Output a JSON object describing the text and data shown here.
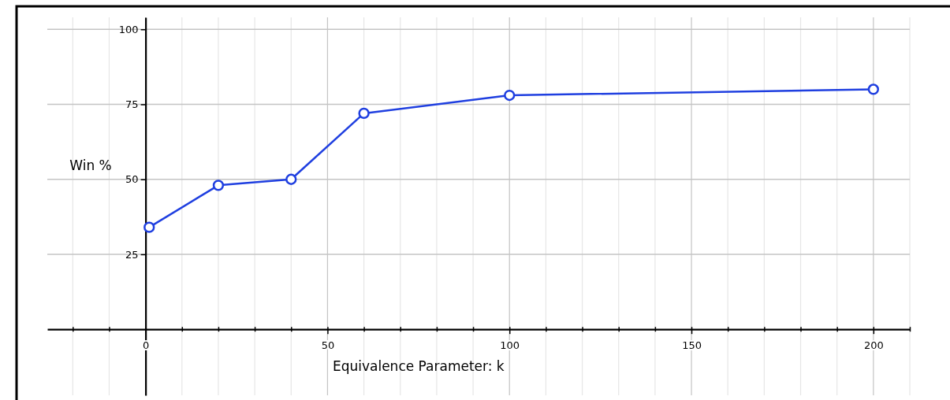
{
  "chart_data": {
    "type": "line",
    "xlabel": "Equivalence Parameter: k",
    "ylabel": "Win %",
    "x": [
      1,
      20,
      40,
      60,
      100,
      200
    ],
    "series": [
      {
        "color": "#1f3fe0",
        "values": [
          34,
          48,
          50,
          72,
          78,
          80
        ]
      }
    ],
    "xlim": [
      -27,
      210
    ],
    "ylim": [
      -22,
      104
    ],
    "xticks": [
      {
        "value": -20,
        "label": null
      },
      {
        "value": -10,
        "label": null
      },
      0,
      {
        "value": 10,
        "label": null
      },
      {
        "value": 20,
        "label": null
      },
      {
        "value": 30,
        "label": null
      },
      {
        "value": 40,
        "label": null
      },
      50,
      {
        "value": 60,
        "label": null
      },
      {
        "value": 70,
        "label": null
      },
      {
        "value": 80,
        "label": null
      },
      {
        "value": 90,
        "label": null
      },
      100,
      {
        "value": 110,
        "label": null
      },
      {
        "value": 120,
        "label": null
      },
      {
        "value": 130,
        "label": null
      },
      {
        "value": 140,
        "label": null
      },
      150,
      {
        "value": 160,
        "label": null
      },
      {
        "value": 170,
        "label": null
      },
      {
        "value": 180,
        "label": null
      },
      {
        "value": 190,
        "label": null
      },
      200,
      {
        "value": 210,
        "label": null
      }
    ],
    "yticks": [
      25,
      50,
      75,
      100
    ],
    "grid": true,
    "marker": "circle",
    "line_style": "solid"
  }
}
